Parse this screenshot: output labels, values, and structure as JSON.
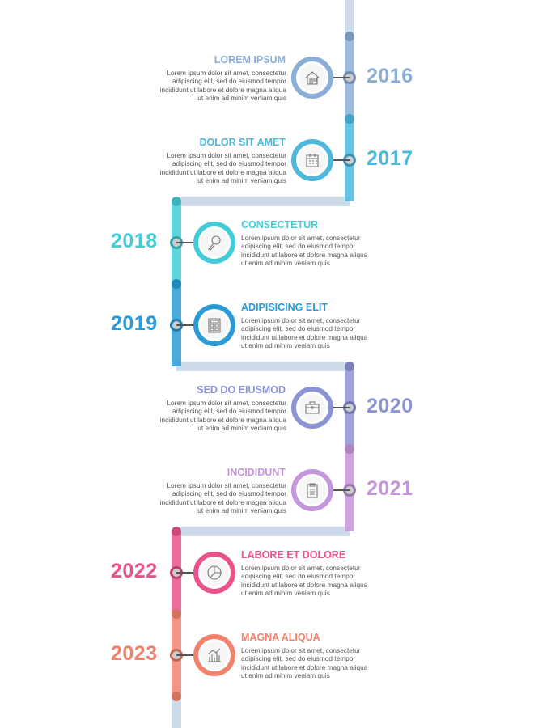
{
  "spine_color": "#cddbe8",
  "items": [
    {
      "year": "2016",
      "title": "LOREM IPSUM",
      "text": "Lorem ipsum dolor sit amet, consectetur adipiscing elit, sed do eiusmod tempor incididunt ut labore et dolore magna aliqua ut enim ad minim veniam quis",
      "color": "#8aaed6",
      "side": "right",
      "icon": "house-icon"
    },
    {
      "year": "2017",
      "title": "DOLOR SIT AMET",
      "text": "Lorem ipsum dolor sit amet, consectetur adipiscing elit, sed do eiusmod tempor incididunt ut labore et dolore magna aliqua ut enim ad minim veniam quis",
      "color": "#4fb8dd",
      "side": "right",
      "icon": "calendar-icon"
    },
    {
      "year": "2018",
      "title": "CONSECTETUR",
      "text": "Lorem ipsum dolor sit amet, consectetur adipiscing elit, sed do eiusmod tempor incididunt ut labore et dolore magna aliqua ut enim ad minim veniam quis",
      "color": "#44ccd6",
      "side": "left",
      "icon": "magnifier-icon"
    },
    {
      "year": "2019",
      "title": "ADIPISICING ELIT",
      "text": "Lorem ipsum dolor sit amet, consectetur adipiscing elit, sed do eiusmod tempor incididunt ut labore et dolore magna aliqua ut enim ad minim veniam quis",
      "color": "#2a9bd4",
      "side": "left",
      "icon": "calculator-icon"
    },
    {
      "year": "2020",
      "title": "SED DO EIUSMOD",
      "text": "Lorem ipsum dolor sit amet, consectetur adipiscing elit, sed do eiusmod tempor incididunt ut labore et dolore magna aliqua ut enim ad minim veniam quis",
      "color": "#8c93d4",
      "side": "right",
      "icon": "briefcase-icon"
    },
    {
      "year": "2021",
      "title": "INCIDIDUNT",
      "text": "Lorem ipsum dolor sit amet, consectetur adipiscing elit, sed do eiusmod tempor incididunt ut labore et dolore magna aliqua ut enim ad minim veniam quis",
      "color": "#c496dc",
      "side": "right",
      "icon": "clipboard-icon"
    },
    {
      "year": "2022",
      "title": "LABORE ET DOLORE",
      "text": "Lorem ipsum dolor sit amet, consectetur adipiscing elit, sed do eiusmod tempor incididunt ut labore et dolore magna aliqua ut enim ad minim veniam quis",
      "color": "#e9528b",
      "side": "left",
      "icon": "pie-chart-icon"
    },
    {
      "year": "2023",
      "title": "MAGNA ALIQUA",
      "text": "Lorem ipsum dolor sit amet, consectetur adipiscing elit, sed do eiusmod tempor incididunt ut labore et dolore magna aliqua ut enim ad minim veniam quis",
      "color": "#f0826e",
      "side": "left",
      "icon": "bar-chart-icon"
    }
  ]
}
